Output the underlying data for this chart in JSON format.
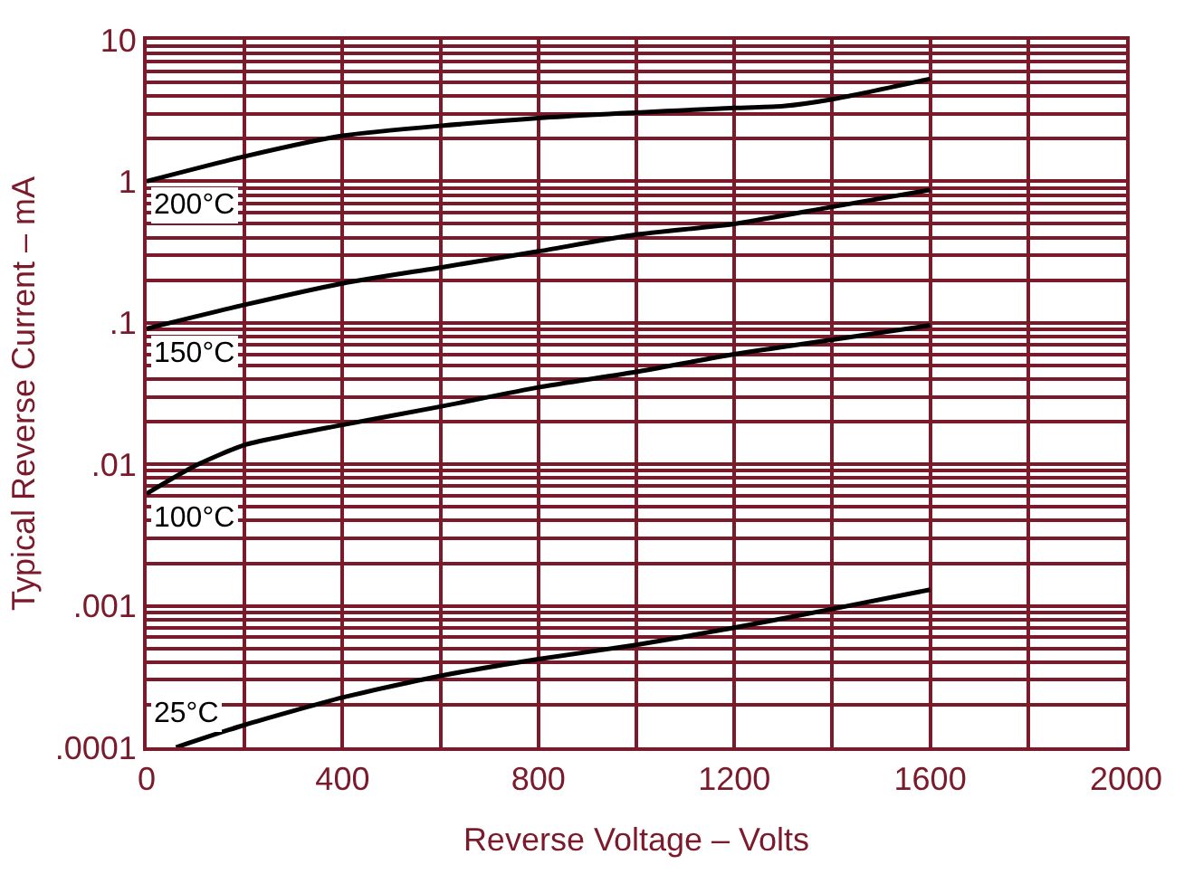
{
  "chart_data": {
    "type": "line",
    "xlabel": "Reverse Voltage – Volts",
    "ylabel": "Typical Reverse Current – mA",
    "log": "y",
    "grid": true,
    "legend": false,
    "marker": "none",
    "line_style": "solid",
    "xlim": [
      0,
      2000
    ],
    "ylim": [
      0.0001,
      10
    ],
    "xticks": [
      0,
      {
        "value": 200,
        "label": null
      },
      400,
      {
        "value": 600,
        "label": null
      },
      800,
      {
        "value": 1000,
        "label": null
      },
      1200,
      {
        "value": 1400,
        "label": null
      },
      1600,
      {
        "value": 1800,
        "label": null
      },
      2000
    ],
    "yticks": [
      {
        "value": 0.0001,
        "label": ".0001"
      },
      {
        "value": 0.0002,
        "label": null
      },
      {
        "value": 0.0003,
        "label": null
      },
      {
        "value": 0.0004,
        "label": null
      },
      {
        "value": 0.0005,
        "label": null
      },
      {
        "value": 0.0006,
        "label": null
      },
      {
        "value": 0.0007,
        "label": null
      },
      {
        "value": 0.0008,
        "label": null
      },
      {
        "value": 0.0009,
        "label": null
      },
      {
        "value": 0.001,
        "label": ".001"
      },
      {
        "value": 0.002,
        "label": null
      },
      {
        "value": 0.003,
        "label": null
      },
      {
        "value": 0.004,
        "label": null
      },
      {
        "value": 0.005,
        "label": null
      },
      {
        "value": 0.006,
        "label": null
      },
      {
        "value": 0.007,
        "label": null
      },
      {
        "value": 0.008,
        "label": null
      },
      {
        "value": 0.009,
        "label": null
      },
      {
        "value": 0.01,
        "label": ".01"
      },
      {
        "value": 0.02,
        "label": null
      },
      {
        "value": 0.03,
        "label": null
      },
      {
        "value": 0.04,
        "label": null
      },
      {
        "value": 0.05,
        "label": null
      },
      {
        "value": 0.06,
        "label": null
      },
      {
        "value": 0.07,
        "label": null
      },
      {
        "value": 0.08,
        "label": null
      },
      {
        "value": 0.09,
        "label": null
      },
      {
        "value": 0.1,
        "label": ".1"
      },
      {
        "value": 0.2,
        "label": null
      },
      {
        "value": 0.3,
        "label": null
      },
      {
        "value": 0.4,
        "label": null
      },
      {
        "value": 0.5,
        "label": null
      },
      {
        "value": 0.6,
        "label": null
      },
      {
        "value": 0.7,
        "label": null
      },
      {
        "value": 0.8,
        "label": null
      },
      {
        "value": 0.9,
        "label": null
      },
      {
        "value": 1,
        "label": "1"
      },
      {
        "value": 2,
        "label": null
      },
      {
        "value": 3,
        "label": null
      },
      {
        "value": 4,
        "label": null
      },
      {
        "value": 5,
        "label": null
      },
      {
        "value": 6,
        "label": null
      },
      {
        "value": 7,
        "label": null
      },
      {
        "value": 8,
        "label": null
      },
      {
        "value": 9,
        "label": null
      },
      {
        "value": 10,
        "label": "10"
      }
    ],
    "series": [
      {
        "name": "200°C",
        "color": "#000000",
        "x": [
          0,
          200,
          400,
          800,
          1200,
          1300,
          1400,
          1600
        ],
        "values": [
          1.0,
          1.5,
          2.1,
          2.8,
          3.3,
          3.4,
          3.8,
          5.3
        ]
      },
      {
        "name": "150°C",
        "color": "#000000",
        "x": [
          0,
          200,
          400,
          600,
          800,
          1000,
          1200,
          1400,
          1600
        ],
        "values": [
          0.091,
          0.134,
          0.19,
          0.246,
          0.32,
          0.42,
          0.5,
          0.66,
          0.87
        ]
      },
      {
        "name": "100°C",
        "color": "#000000",
        "x": [
          0,
          100,
          200,
          400,
          600,
          800,
          1000,
          1200,
          1400,
          1600
        ],
        "values": [
          0.0062,
          0.0098,
          0.0137,
          0.019,
          0.0256,
          0.035,
          0.045,
          0.06,
          0.076,
          0.096
        ]
      },
      {
        "name": "25°C",
        "color": "#000000",
        "x": [
          60,
          200,
          400,
          600,
          800,
          1000,
          1200,
          1400,
          1600
        ],
        "values": [
          0.0001,
          0.000144,
          0.000225,
          0.00032,
          0.00042,
          0.00053,
          0.0007,
          0.00095,
          0.0013
        ]
      }
    ]
  }
}
